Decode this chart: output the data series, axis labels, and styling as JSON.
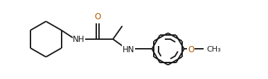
{
  "bg_color": "#ffffff",
  "bond_color": "#1a1a1a",
  "atom_color_N": "#1a1a1a",
  "atom_color_O": "#b35900",
  "line_width": 1.4,
  "font_size_atom": 8.5,
  "fig_width": 3.87,
  "fig_height": 1.16,
  "dpi": 100,
  "xlim": [
    0,
    7.8
  ],
  "ylim": [
    0.2,
    2.8
  ]
}
